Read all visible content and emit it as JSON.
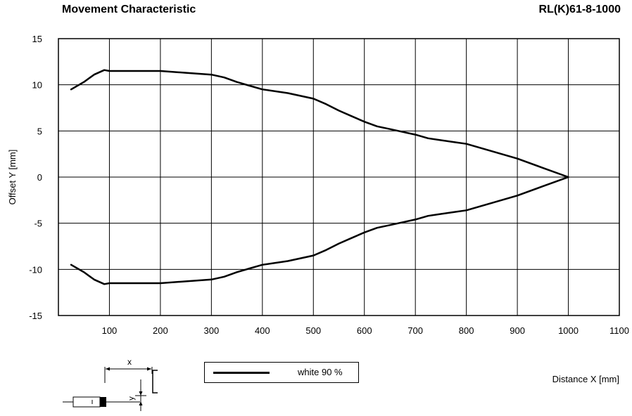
{
  "header": {
    "title_left": "Movement Characteristic",
    "title_right": "RL(K)61-8-1000"
  },
  "chart_data": {
    "type": "line",
    "title": "Movement Characteristic",
    "xlabel": "Distance X [mm]",
    "ylabel": "Offset Y [mm]",
    "xlim": [
      0,
      1100
    ],
    "ylim": [
      -15,
      15
    ],
    "x_ticks": [
      100,
      200,
      300,
      400,
      500,
      600,
      700,
      800,
      900,
      1000,
      1100
    ],
    "y_ticks": [
      15,
      10,
      5,
      0,
      -5,
      -10,
      -15
    ],
    "grid": true,
    "legend_position": "bottom-center",
    "series": [
      {
        "name": "white 90 %",
        "color": "#000000",
        "upper": [
          [
            25,
            9.5
          ],
          [
            50,
            10.3
          ],
          [
            70,
            11.1
          ],
          [
            90,
            11.6
          ],
          [
            100,
            11.5
          ],
          [
            150,
            11.5
          ],
          [
            200,
            11.5
          ],
          [
            250,
            11.3
          ],
          [
            300,
            11.1
          ],
          [
            325,
            10.8
          ],
          [
            350,
            10.3
          ],
          [
            375,
            9.9
          ],
          [
            400,
            9.5
          ],
          [
            450,
            9.1
          ],
          [
            500,
            8.5
          ],
          [
            525,
            7.9
          ],
          [
            550,
            7.2
          ],
          [
            575,
            6.6
          ],
          [
            600,
            6.0
          ],
          [
            625,
            5.5
          ],
          [
            650,
            5.2
          ],
          [
            700,
            4.6
          ],
          [
            725,
            4.2
          ],
          [
            750,
            4.0
          ],
          [
            775,
            3.8
          ],
          [
            800,
            3.6
          ],
          [
            850,
            2.8
          ],
          [
            900,
            2.0
          ],
          [
            950,
            1.0
          ],
          [
            1000,
            0
          ]
        ],
        "lower": [
          [
            25,
            -9.5
          ],
          [
            50,
            -10.3
          ],
          [
            70,
            -11.1
          ],
          [
            90,
            -11.6
          ],
          [
            100,
            -11.5
          ],
          [
            150,
            -11.5
          ],
          [
            200,
            -11.5
          ],
          [
            250,
            -11.3
          ],
          [
            300,
            -11.1
          ],
          [
            325,
            -10.8
          ],
          [
            350,
            -10.3
          ],
          [
            375,
            -9.9
          ],
          [
            400,
            -9.5
          ],
          [
            450,
            -9.1
          ],
          [
            500,
            -8.5
          ],
          [
            525,
            -7.9
          ],
          [
            550,
            -7.2
          ],
          [
            575,
            -6.6
          ],
          [
            600,
            -6.0
          ],
          [
            625,
            -5.5
          ],
          [
            650,
            -5.2
          ],
          [
            700,
            -4.6
          ],
          [
            725,
            -4.2
          ],
          [
            750,
            -4.0
          ],
          [
            775,
            -3.8
          ],
          [
            800,
            -3.6
          ],
          [
            850,
            -2.8
          ],
          [
            900,
            -2.0
          ],
          [
            950,
            -1.0
          ],
          [
            1000,
            0
          ]
        ]
      }
    ]
  },
  "legend": {
    "label": "white 90 %"
  },
  "schematic": {
    "x_label": "x",
    "y_label": "y"
  }
}
